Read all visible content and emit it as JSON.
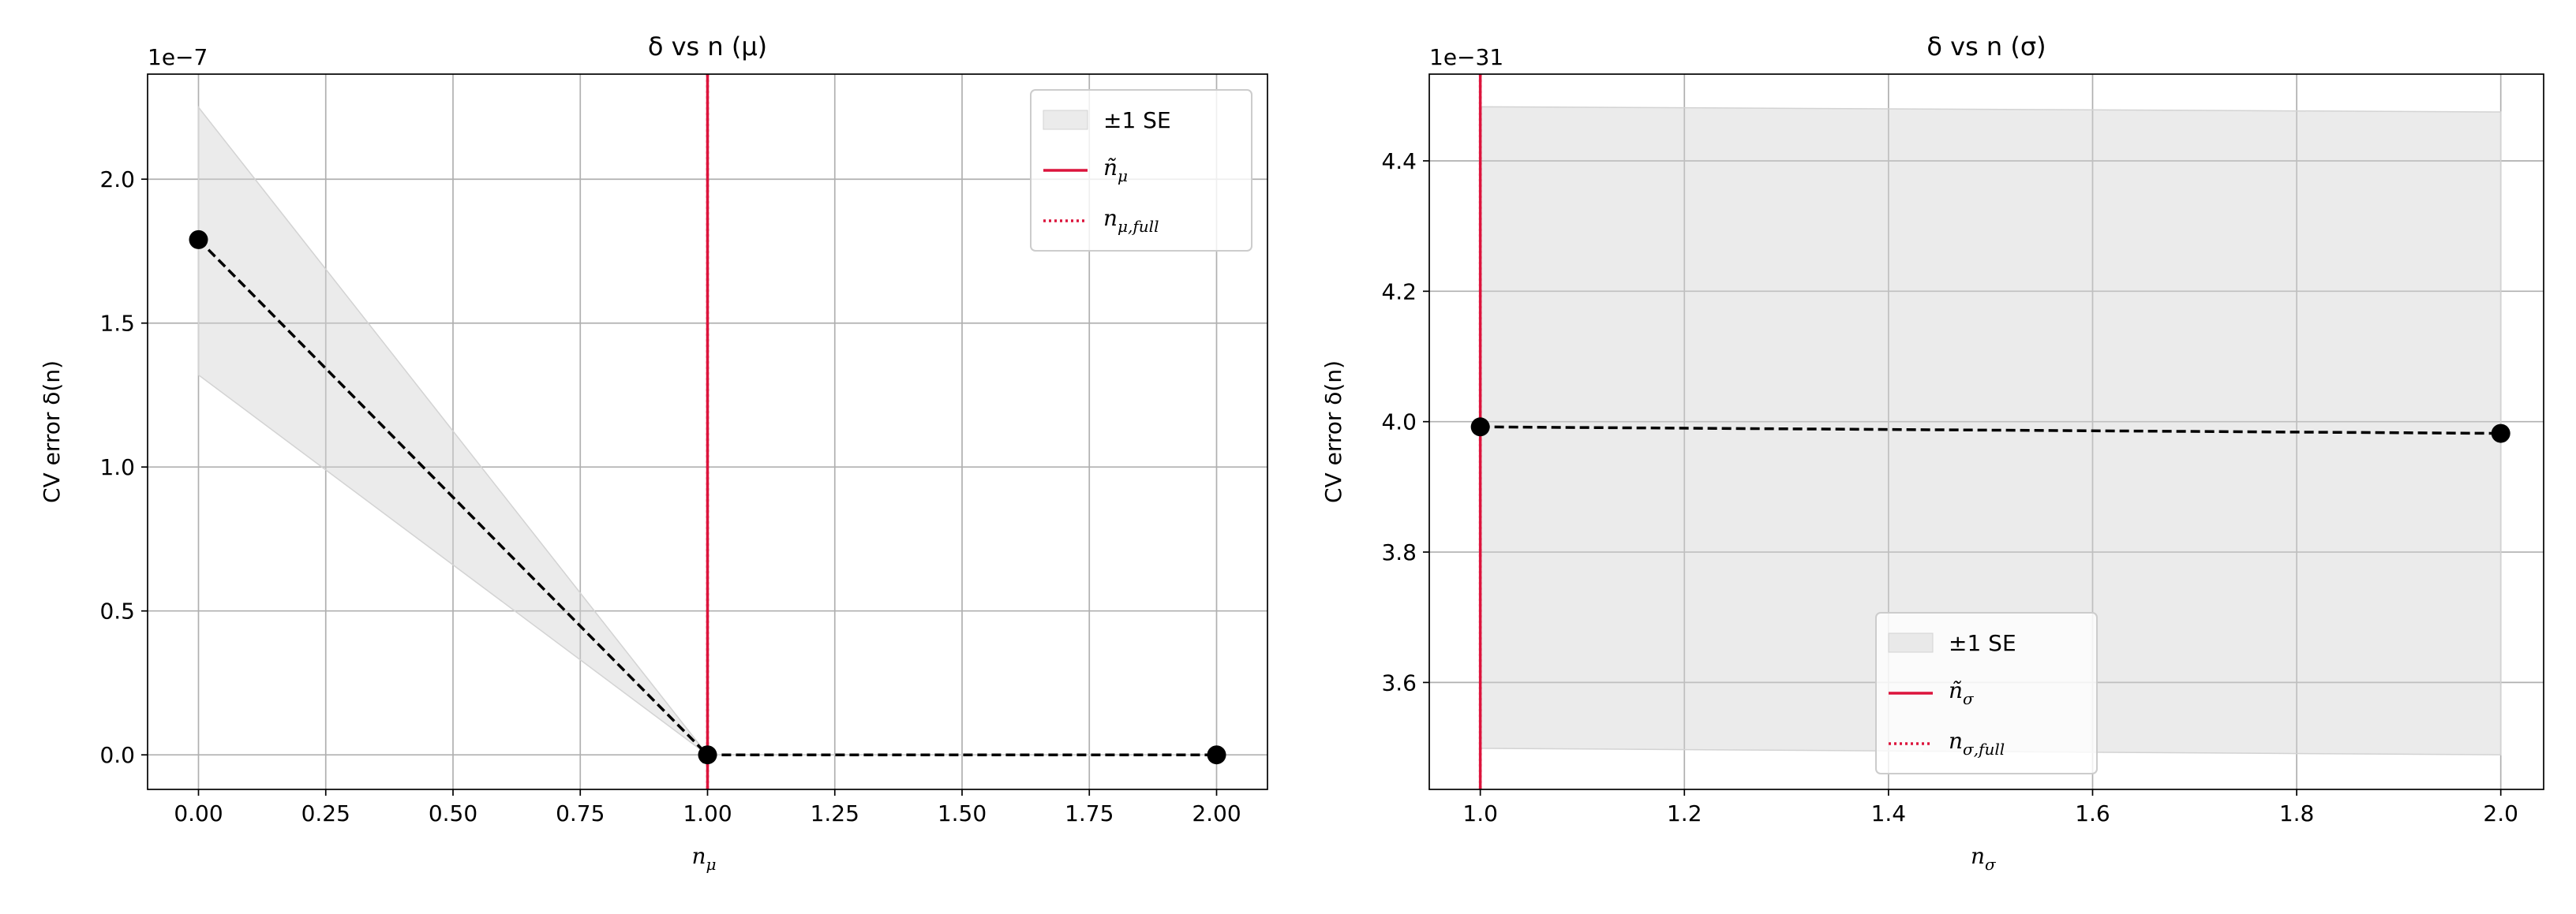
{
  "chart_data": [
    {
      "type": "line",
      "title": "δ vs n (μ)",
      "xlabel": "n",
      "xlabel_sub": "μ",
      "ylabel": "CV error δ(n)",
      "offset_text": "1e−7",
      "x": [
        0,
        1,
        2
      ],
      "values": [
        1.79,
        0,
        0
      ],
      "color": "#000000",
      "linestyle": "dashed",
      "band": {
        "name": "±1 SE",
        "upper": [
          2.25,
          0,
          0
        ],
        "lower": [
          1.32,
          0,
          0
        ],
        "color": "#d3d3d3"
      },
      "vlines": [
        {
          "x": 1,
          "name": "ñ",
          "name_sub": "μ",
          "color": "#dc143c",
          "style": "solid"
        },
        {
          "x": 1,
          "name": "n",
          "name_sub": "μ,full",
          "color": "#dc143c",
          "style": "dotted"
        }
      ],
      "xlim": [
        -0.1,
        2.1
      ],
      "ylim": [
        -0.12,
        2.365
      ],
      "xticks": [
        {
          "value": 0,
          "label": "0.00"
        },
        {
          "value": 0.25,
          "label": "0.25"
        },
        {
          "value": 0.5,
          "label": "0.50"
        },
        {
          "value": 0.75,
          "label": "0.75"
        },
        {
          "value": 1,
          "label": "1.00"
        },
        {
          "value": 1.25,
          "label": "1.25"
        },
        {
          "value": 1.5,
          "label": "1.50"
        },
        {
          "value": 1.75,
          "label": "1.75"
        },
        {
          "value": 2,
          "label": "2.00"
        }
      ],
      "yticks": [
        {
          "value": 0,
          "label": "0.0"
        },
        0.5,
        {
          "value": 1,
          "label": "1.0"
        },
        1.5,
        {
          "value": 2,
          "label": "2.0"
        }
      ],
      "grid": true,
      "legend": "upper right"
    },
    {
      "type": "line",
      "title": "δ vs n (σ)",
      "xlabel": "n",
      "xlabel_sub": "σ",
      "ylabel": "CV error δ(n)",
      "offset_text": "1e−31",
      "x": [
        1,
        2
      ],
      "values": [
        3.992,
        3.982
      ],
      "color": "#000000",
      "linestyle": "dashed",
      "band": {
        "name": "±1 SE",
        "upper": [
          4.483,
          4.475
        ],
        "lower": [
          3.499,
          3.489
        ],
        "color": "#d3d3d3"
      },
      "vlines": [
        {
          "x": 1,
          "name": "ñ",
          "name_sub": "σ",
          "color": "#dc143c",
          "style": "solid"
        },
        {
          "x": 1,
          "name": "n",
          "name_sub": "σ,full",
          "color": "#dc143c",
          "style": "dotted"
        }
      ],
      "xlim": [
        0.95,
        2.042
      ],
      "ylim": [
        3.436,
        4.533
      ],
      "xticks": [
        {
          "value": 1,
          "label": "1.0"
        },
        1.2,
        1.4,
        1.6,
        1.8,
        {
          "value": 2,
          "label": "2.0"
        }
      ],
      "yticks": [
        3.6,
        3.8,
        {
          "value": 4,
          "label": "4.0"
        },
        4.2,
        4.4
      ],
      "grid": true,
      "legend": "lower center"
    }
  ]
}
